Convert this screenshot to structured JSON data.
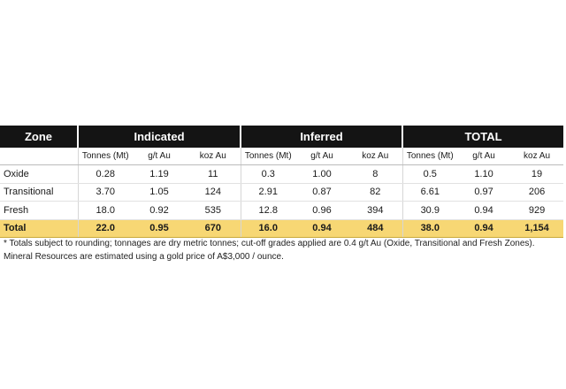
{
  "table": {
    "header": {
      "zone": "Zone",
      "groups": [
        "Indicated",
        "Inferred",
        "TOTAL"
      ]
    },
    "subheader": [
      "Tonnes (Mt)",
      "g/t Au",
      "koz Au",
      "Tonnes (Mt)",
      "g/t Au",
      "koz Au",
      "Tonnes (Mt)",
      "g/t Au",
      "koz Au"
    ],
    "rows": [
      {
        "label": "Oxide",
        "cells": [
          "0.28",
          "1.19",
          "11",
          "0.3",
          "1.00",
          "8",
          "0.5",
          "1.10",
          "19"
        ]
      },
      {
        "label": "Transitional",
        "cells": [
          "3.70",
          "1.05",
          "124",
          "2.91",
          "0.87",
          "82",
          "6.61",
          "0.97",
          "206"
        ]
      },
      {
        "label": "Fresh",
        "cells": [
          "18.0",
          "0.92",
          "535",
          "12.8",
          "0.96",
          "394",
          "30.9",
          "0.94",
          "929"
        ]
      }
    ],
    "total": {
      "label": "Total",
      "cells": [
        "22.0",
        "0.95",
        "670",
        "16.0",
        "0.94",
        "484",
        "38.0",
        "0.94",
        "1,154"
      ]
    }
  },
  "footnote": [
    "* Totals subject to rounding; tonnages are dry metric tonnes; cut-off grades applied are 0.4 g/t Au (Oxide, Transitional and Fresh Zones).",
    "Mineral Resources are estimated using a gold price of A$3,000 / ounce."
  ]
}
